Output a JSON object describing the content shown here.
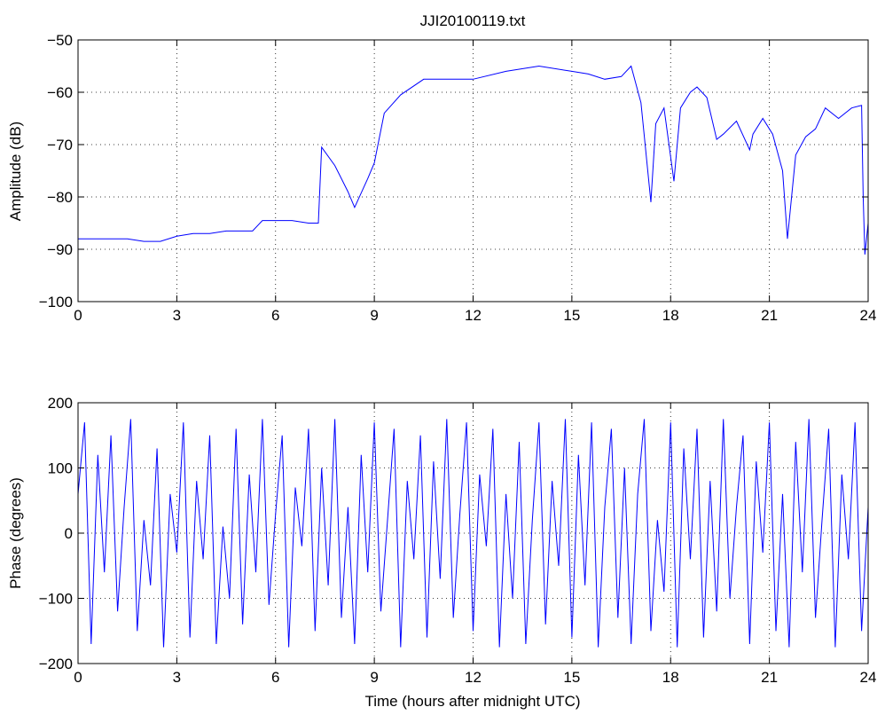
{
  "title": "JJI20100119.txt",
  "colors": {
    "series": "#0000ff",
    "axes": "#000000",
    "background": "#ffffff"
  },
  "chart_data": [
    {
      "type": "line",
      "title": "JJI20100119.txt",
      "xlabel": "",
      "ylabel": "Amplitude (dB)",
      "xlim": [
        0,
        24
      ],
      "ylim": [
        -100,
        -50
      ],
      "xticks": [
        0,
        3,
        6,
        9,
        12,
        15,
        18,
        21,
        24
      ],
      "yticks": [
        -100,
        -90,
        -80,
        -70,
        -60,
        -50
      ],
      "grid": true,
      "series": [
        {
          "x": [
            0,
            0.5,
            1,
            1.5,
            2,
            2.5,
            3,
            3.5,
            4,
            4.5,
            5,
            5.3,
            5.6,
            6,
            6.5,
            7,
            7.3,
            7.4,
            7.8,
            8.2,
            8.4,
            8.8,
            9.0,
            9.3,
            9.8,
            10.5,
            11,
            12,
            13,
            14,
            15,
            15.5,
            16,
            16.5,
            16.8,
            17.1,
            17.4,
            17.55,
            17.8,
            18.1,
            18.3,
            18.6,
            18.8,
            19.1,
            19.4,
            19.6,
            20.0,
            20.4,
            20.5,
            20.8,
            21.1,
            21.4,
            21.55,
            21.8,
            22.1,
            22.4,
            22.7,
            23.1,
            23.5,
            23.8,
            23.85,
            23.9,
            24
          ],
          "y": [
            -88,
            -88,
            -88,
            -88,
            -88.5,
            -88.5,
            -87.5,
            -87,
            -87,
            -86.5,
            -86.5,
            -86.5,
            -84.5,
            -84.5,
            -84.5,
            -85,
            -85,
            -70.5,
            -74,
            -79,
            -82,
            -76.5,
            -73.5,
            -64,
            -60.5,
            -57.5,
            -57.5,
            -57.5,
            -56,
            -55,
            -56,
            -56.5,
            -57.5,
            -57,
            -55,
            -62,
            -81,
            -66,
            -63,
            -77,
            -63,
            -60,
            -59,
            -61,
            -69,
            -68,
            -65.5,
            -71,
            -68,
            -65,
            -68,
            -75,
            -88,
            -72,
            -68.5,
            -67,
            -63,
            -65,
            -63,
            -62.5,
            -80,
            -91,
            -85
          ]
        }
      ]
    },
    {
      "type": "line",
      "title": "",
      "xlabel": "Time (hours after midnight UTC)",
      "ylabel": "Phase (degrees)",
      "xlim": [
        0,
        24
      ],
      "ylim": [
        -200,
        200
      ],
      "xticks": [
        0,
        3,
        6,
        9,
        12,
        15,
        18,
        21,
        24
      ],
      "yticks": [
        -200,
        -100,
        0,
        100,
        200
      ],
      "grid": true,
      "series": [
        {
          "x": [
            0,
            0.2,
            0.4,
            0.6,
            0.8,
            1.0,
            1.2,
            1.4,
            1.6,
            1.8,
            2.0,
            2.2,
            2.4,
            2.6,
            2.8,
            3.0,
            3.2,
            3.4,
            3.6,
            3.8,
            4.0,
            4.2,
            4.4,
            4.6,
            4.8,
            5.0,
            5.2,
            5.4,
            5.6,
            5.8,
            6.0,
            6.2,
            6.4,
            6.6,
            6.8,
            7.0,
            7.2,
            7.4,
            7.6,
            7.8,
            8.0,
            8.2,
            8.4,
            8.6,
            8.8,
            9.0,
            9.2,
            9.4,
            9.6,
            9.8,
            10.0,
            10.2,
            10.4,
            10.6,
            10.8,
            11.0,
            11.2,
            11.4,
            11.6,
            11.8,
            12.0,
            12.2,
            12.4,
            12.6,
            12.8,
            13.0,
            13.2,
            13.4,
            13.6,
            13.8,
            14.0,
            14.2,
            14.4,
            14.6,
            14.8,
            15.0,
            15.2,
            15.4,
            15.6,
            15.8,
            16.0,
            16.2,
            16.4,
            16.6,
            16.8,
            17.0,
            17.2,
            17.4,
            17.6,
            17.8,
            18.0,
            18.2,
            18.4,
            18.6,
            18.8,
            19.0,
            19.2,
            19.4,
            19.6,
            19.8,
            20.0,
            20.2,
            20.4,
            20.6,
            20.8,
            21.0,
            21.2,
            21.4,
            21.6,
            21.8,
            22.0,
            22.2,
            22.4,
            22.6,
            22.8,
            23.0,
            23.2,
            23.4,
            23.6,
            23.8,
            24.0
          ],
          "y": [
            60,
            170,
            -170,
            120,
            -60,
            150,
            -120,
            40,
            175,
            -150,
            20,
            -80,
            130,
            -175,
            60,
            -30,
            170,
            -160,
            80,
            -40,
            150,
            -170,
            10,
            -100,
            160,
            -140,
            90,
            -60,
            175,
            -110,
            30,
            150,
            -175,
            70,
            -20,
            160,
            -150,
            100,
            -80,
            175,
            -130,
            40,
            -170,
            120,
            -60,
            170,
            -120,
            20,
            160,
            -175,
            80,
            -40,
            150,
            -160,
            110,
            -70,
            175,
            -130,
            30,
            170,
            -150,
            90,
            -20,
            160,
            -175,
            60,
            -100,
            140,
            -170,
            20,
            170,
            -140,
            80,
            -50,
            175,
            -160,
            120,
            -80,
            170,
            -175,
            40,
            160,
            -130,
            100,
            -170,
            60,
            175,
            -150,
            20,
            -90,
            170,
            -175,
            130,
            -40,
            160,
            -160,
            80,
            -120,
            175,
            -100,
            40,
            150,
            -170,
            110,
            -30,
            170,
            -150,
            60,
            -175,
            140,
            -60,
            175,
            -130,
            20,
            160,
            -175,
            90,
            -40,
            170,
            -150,
            40
          ]
        }
      ]
    }
  ]
}
